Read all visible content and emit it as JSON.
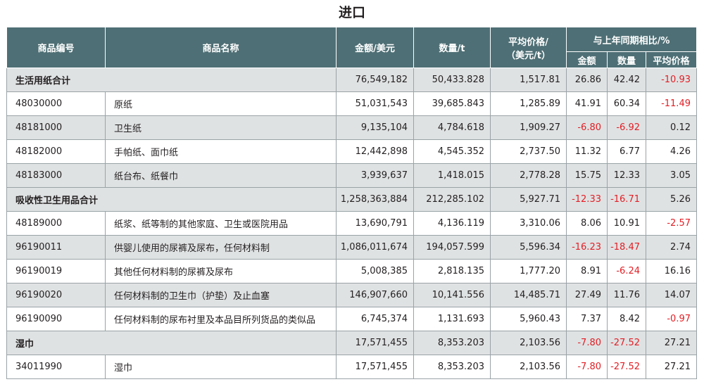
{
  "title": "进口",
  "header": {
    "code": "商品编号",
    "name": "商品名称",
    "amount": "金额/美元",
    "quantity": "数量/t",
    "avg_price_line1": "平均价格/",
    "avg_price_line2": "（美元/t）",
    "yoy": "与上年同期相比/%",
    "yoy_amount": "金额",
    "yoy_quantity": "数量",
    "yoy_avg_price": "平均价格"
  },
  "colors": {
    "header_bg": "#4e6f75",
    "shade_bg": "#dfe2e3",
    "negative": "#e31e24"
  },
  "rows": [
    {
      "type": "group",
      "name": "生活用纸合计",
      "amount": "76,549,182",
      "quantity": "50,433.828",
      "avg": "1,517.81",
      "yoy_amount": "26.86",
      "yoy_quantity": "42.42",
      "yoy_avg": "-10.93"
    },
    {
      "type": "item",
      "code": "48030000",
      "name": "原纸",
      "amount": "51,031,543",
      "quantity": "39,685.843",
      "avg": "1,285.89",
      "yoy_amount": "41.91",
      "yoy_quantity": "60.34",
      "yoy_avg": "-11.49"
    },
    {
      "type": "item",
      "code": "48181000",
      "name": "卫生纸",
      "amount": "9,135,104",
      "quantity": "4,784.618",
      "avg": "1,909.27",
      "yoy_amount": "-6.80",
      "yoy_quantity": "-6.92",
      "yoy_avg": "0.12"
    },
    {
      "type": "item",
      "code": "48182000",
      "name": "手帕纸、面巾纸",
      "amount": "12,442,898",
      "quantity": "4,545.352",
      "avg": "2,737.50",
      "yoy_amount": "11.32",
      "yoy_quantity": "6.77",
      "yoy_avg": "4.26"
    },
    {
      "type": "item",
      "code": "48183000",
      "name": "纸台布、纸餐巾",
      "amount": "3,939,637",
      "quantity": "1,418.015",
      "avg": "2,778.28",
      "yoy_amount": "15.75",
      "yoy_quantity": "12.33",
      "yoy_avg": "3.05"
    },
    {
      "type": "group",
      "name": "吸收性卫生用品合计",
      "amount": "1,258,363,884",
      "quantity": "212,285.102",
      "avg": "5,927.71",
      "yoy_amount": "-12.33",
      "yoy_quantity": "-16.71",
      "yoy_avg": "5.26"
    },
    {
      "type": "item",
      "code": "48189000",
      "name": "纸浆、纸等制的其他家庭、卫生或医院用品",
      "amount": "13,690,791",
      "quantity": "4,136.119",
      "avg": "3,310.06",
      "yoy_amount": "8.06",
      "yoy_quantity": "10.91",
      "yoy_avg": "-2.57"
    },
    {
      "type": "item",
      "code": "96190011",
      "name": "供婴儿使用的尿裤及尿布，任何材料制",
      "amount": "1,086,011,674",
      "quantity": "194,057.599",
      "avg": "5,596.34",
      "yoy_amount": "-16.23",
      "yoy_quantity": "-18.47",
      "yoy_avg": "2.74"
    },
    {
      "type": "item",
      "code": "96190019",
      "name": "其他任何材料制的尿裤及尿布",
      "amount": "5,008,385",
      "quantity": "2,818.135",
      "avg": "1,777.20",
      "yoy_amount": "8.91",
      "yoy_quantity": "-6.24",
      "yoy_avg": "16.16"
    },
    {
      "type": "item",
      "code": "96190020",
      "name": "任何材料制的卫生巾（护垫）及止血塞",
      "amount": "146,907,660",
      "quantity": "10,141.556",
      "avg": "14,485.71",
      "yoy_amount": "27.49",
      "yoy_quantity": "11.76",
      "yoy_avg": "14.07"
    },
    {
      "type": "item",
      "code": "96190090",
      "name": "任何材料制的尿布衬里及本品目所列货品的类似品",
      "amount": "6,745,374",
      "quantity": "1,131.693",
      "avg": "5,960.43",
      "yoy_amount": "7.37",
      "yoy_quantity": "8.42",
      "yoy_avg": "-0.97"
    },
    {
      "type": "group",
      "name": "湿巾",
      "amount": "17,571,455",
      "quantity": "8,353.203",
      "avg": "2,103.56",
      "yoy_amount": "-7.80",
      "yoy_quantity": "-27.52",
      "yoy_avg": "27.21"
    },
    {
      "type": "item",
      "code": "34011990",
      "name": "湿巾",
      "amount": "17,571,455",
      "quantity": "8,353.203",
      "avg": "2,103.56",
      "yoy_amount": "-7.80",
      "yoy_quantity": "-27.52",
      "yoy_avg": "27.21"
    }
  ]
}
